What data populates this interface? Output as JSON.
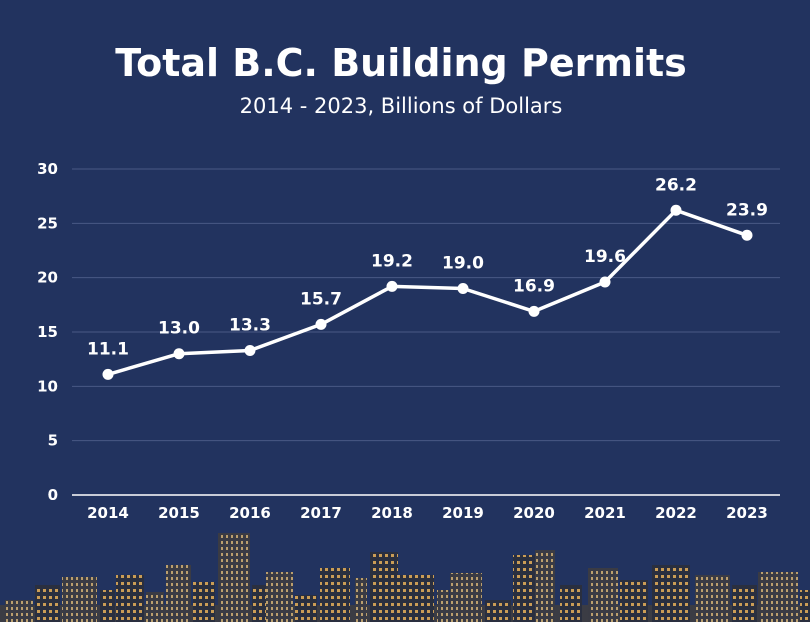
{
  "colors": {
    "background": "#22335f",
    "line": "#ffffff",
    "grid": "#4a5a85",
    "text": "#ffffff"
  },
  "chart_data": {
    "type": "line",
    "title": "Total B.C. Building Permits",
    "subtitle": "2014 - 2023, Billions of Dollars",
    "xlabel": "",
    "ylabel": "",
    "categories": [
      "2014",
      "2015",
      "2016",
      "2017",
      "2018",
      "2019",
      "2020",
      "2021",
      "2022",
      "2023"
    ],
    "values": [
      11.1,
      13.0,
      13.3,
      15.7,
      19.2,
      19.0,
      16.9,
      19.6,
      26.2,
      23.9
    ],
    "data_labels": [
      "11.1",
      "13.0",
      "13.3",
      "15.7",
      "19.2",
      "19.0",
      "16.9",
      "19.6",
      "26.2",
      "23.9"
    ],
    "ylim": [
      0,
      30
    ],
    "yticks": [
      "0",
      "5",
      "10",
      "15",
      "20",
      "25",
      "30"
    ],
    "grid": true,
    "legend": "none"
  }
}
